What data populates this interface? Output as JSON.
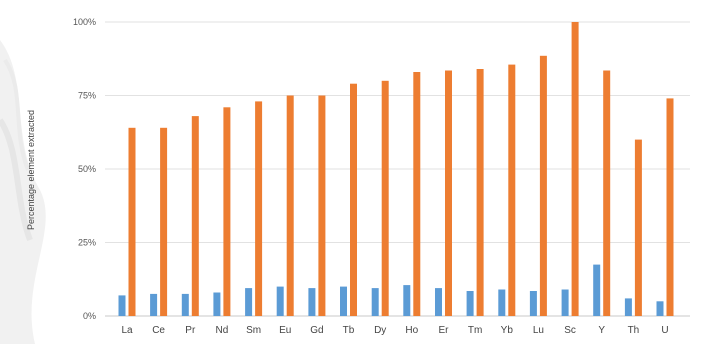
{
  "chart_data": {
    "type": "bar",
    "ylabel": "Percentage element extracted",
    "ylim": [
      0,
      100
    ],
    "yticks": [
      0,
      25,
      50,
      75,
      100
    ],
    "ytick_labels": [
      "0%",
      "25%",
      "50%",
      "75%",
      "100%"
    ],
    "grid": true,
    "categories": [
      "La",
      "Ce",
      "Pr",
      "Nd",
      "Sm",
      "Eu",
      "Gd",
      "Tb",
      "Dy",
      "Ho",
      "Er",
      "Tm",
      "Yb",
      "Lu",
      "Sc",
      "Y",
      "Th",
      "U"
    ],
    "series": [
      {
        "color": "#5b9bd5",
        "values": [
          7,
          7.5,
          7.5,
          8,
          9.5,
          10,
          9.5,
          10,
          9.5,
          10.5,
          9.5,
          8.5,
          9,
          8.5,
          9,
          17.5,
          6,
          5
        ]
      },
      {
        "color": "#ed7d31",
        "values": [
          64,
          64,
          68,
          71,
          73,
          75,
          75,
          79,
          80,
          83,
          83.5,
          84,
          85.5,
          88.5,
          100,
          83.5,
          60,
          74
        ]
      }
    ]
  }
}
